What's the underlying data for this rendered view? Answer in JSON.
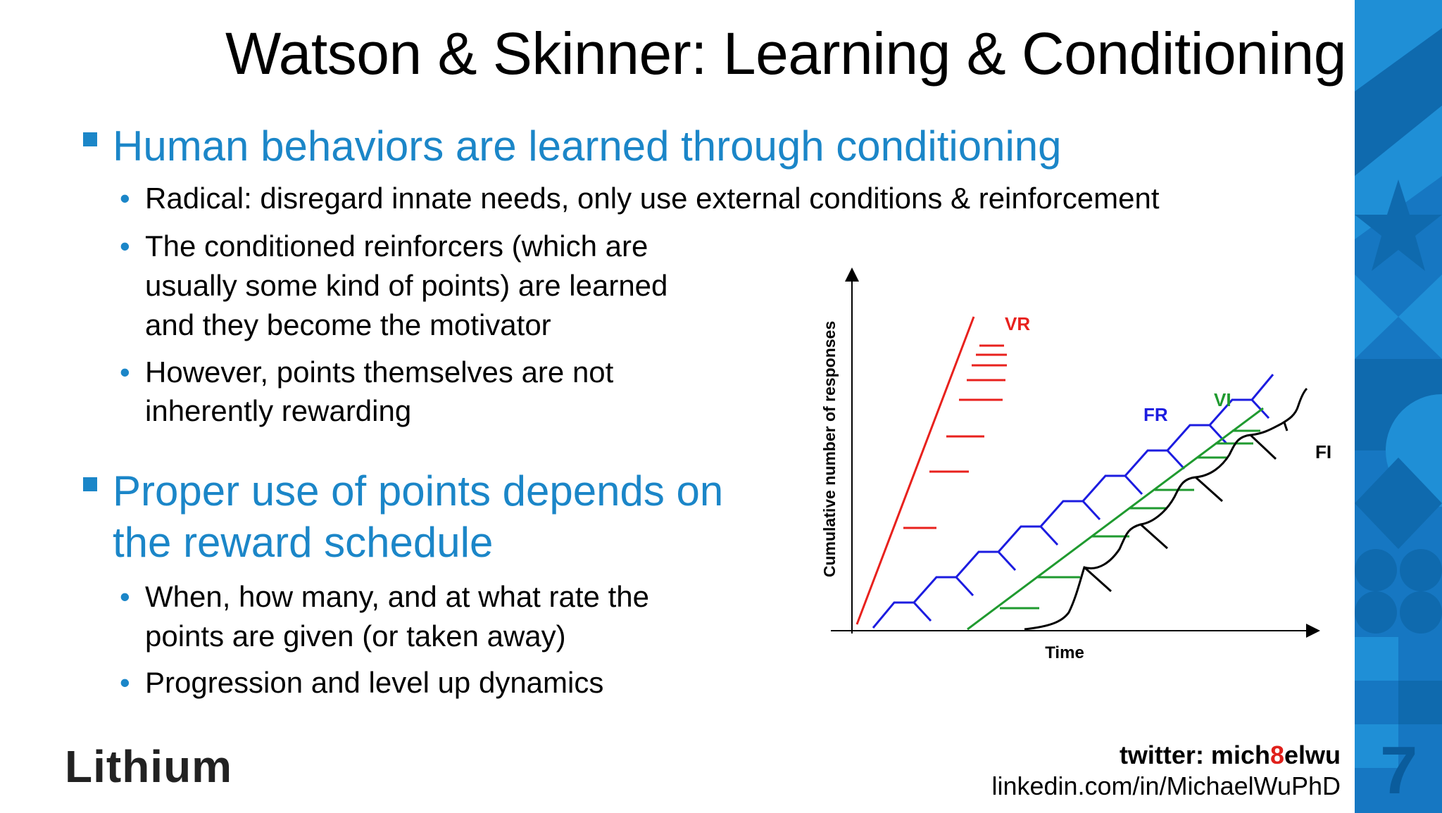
{
  "title": "Watson & Skinner: Learning & Conditioning",
  "bullets": [
    {
      "lines": [
        "Human behaviors are learned through conditioning"
      ],
      "sub": [
        {
          "lines": [
            "Radical: disregard innate needs, only use external conditions & reinforcement"
          ]
        },
        {
          "lines": [
            "The conditioned reinforcers (which are",
            "usually some kind of points) are learned",
            "and they become the motivator"
          ]
        },
        {
          "lines": [
            "However, points themselves are not",
            "inherently rewarding"
          ]
        }
      ]
    },
    {
      "lines": [
        "Proper use of points depends on",
        "the reward schedule"
      ],
      "sub": [
        {
          "lines": [
            "When, how many, and at what rate the",
            "points are given (or taken away)"
          ]
        },
        {
          "lines": [
            "Progression and level up dynamics"
          ]
        }
      ]
    }
  ],
  "chart_data": {
    "type": "line",
    "xlabel": "Time",
    "ylabel": "Cumulative number of responses",
    "series": [
      {
        "name": "VR",
        "color": "#e8211d"
      },
      {
        "name": "FR",
        "color": "#1c1ce0"
      },
      {
        "name": "VI",
        "color": "#1f9a2f"
      },
      {
        "name": "FI",
        "color": "#000000"
      }
    ]
  },
  "logo": "Lithium",
  "footer": {
    "twitter_prefix": "twitter: mich",
    "twitter_accent": "8",
    "twitter_suffix": "elwu",
    "linkedin": "linkedin.com/in/MichaelWuPhD"
  },
  "page_number": "7",
  "colors": {
    "accent": "#1b86c8",
    "band": "#1677c2"
  }
}
